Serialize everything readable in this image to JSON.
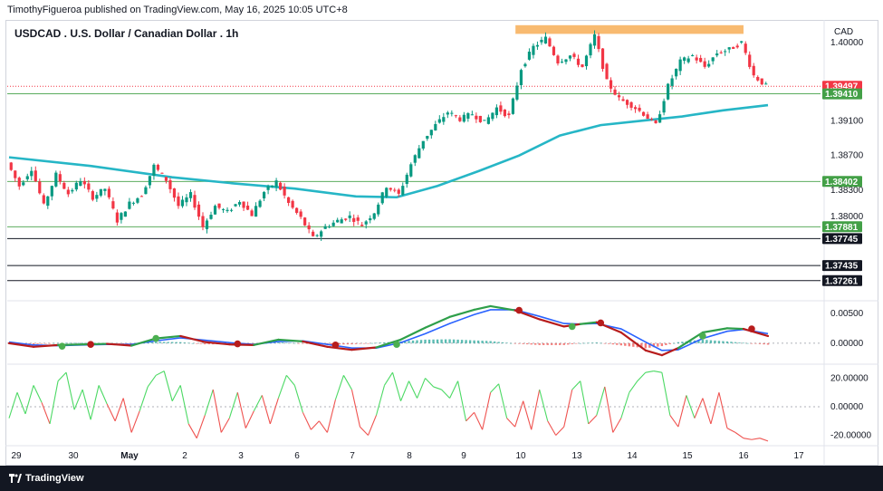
{
  "header": {
    "publisher": "TimothyFigueroa published on TradingView.com, May 16, 2025 10:05 UTC+8"
  },
  "footer": {
    "brand": "TradingView"
  },
  "colors": {
    "up": "#089981",
    "down": "#f23645",
    "ma": "#26b6c6",
    "resistance_zone": "#f7b360",
    "macd_up": "#2e9f4a",
    "macd_down": "#b71c1c",
    "macd_signal": "#2962ff",
    "osc_up": "#4cd964",
    "osc_down": "#ef5350"
  },
  "chart_data": {
    "type": "candlestick",
    "title": "USDCAD . U.S. Dollar / Canadian Dollar . 1h",
    "currency": "CAD",
    "x_tick_labels": [
      "29",
      "30",
      "May",
      "2",
      "3",
      "6",
      "7",
      "8",
      "9",
      "10",
      "13",
      "14",
      "15",
      "16",
      "17"
    ],
    "price_axis": {
      "ticks": [
        "1.40000",
        "1.39100",
        "1.38700",
        "1.38300",
        "1.38000"
      ],
      "ylim": [
        1.3705,
        1.4025
      ]
    },
    "price_path": [
      [
        0,
        1.3862
      ],
      [
        3,
        1.3835
      ],
      [
        6,
        1.3855
      ],
      [
        9,
        1.3812
      ],
      [
        12,
        1.3848
      ],
      [
        15,
        1.3826
      ],
      [
        18,
        1.3842
      ],
      [
        21,
        1.3822
      ],
      [
        24,
        1.3832
      ],
      [
        27,
        1.3795
      ],
      [
        30,
        1.3815
      ],
      [
        33,
        1.3825
      ],
      [
        36,
        1.3858
      ],
      [
        39,
        1.3842
      ],
      [
        42,
        1.3812
      ],
      [
        45,
        1.3825
      ],
      [
        48,
        1.3788
      ],
      [
        51,
        1.3812
      ],
      [
        54,
        1.3805
      ],
      [
        57,
        1.3818
      ],
      [
        60,
        1.3802
      ],
      [
        63,
        1.3828
      ],
      [
        66,
        1.384
      ],
      [
        69,
        1.3815
      ],
      [
        72,
        1.3798
      ],
      [
        75,
        1.3775
      ],
      [
        78,
        1.3788
      ],
      [
        81,
        1.3795
      ],
      [
        84,
        1.38
      ],
      [
        87,
        1.379
      ],
      [
        90,
        1.3805
      ],
      [
        93,
        1.3835
      ],
      [
        96,
        1.3825
      ],
      [
        99,
        1.386
      ],
      [
        102,
        1.3888
      ],
      [
        105,
        1.3905
      ],
      [
        108,
        1.392
      ],
      [
        111,
        1.3912
      ],
      [
        114,
        1.3918
      ],
      [
        117,
        1.3908
      ],
      [
        120,
        1.3925
      ],
      [
        123,
        1.3915
      ],
      [
        126,
        1.397
      ],
      [
        129,
        1.3995
      ],
      [
        132,
        1.4005
      ],
      [
        135,
        1.3978
      ],
      [
        138,
        1.3985
      ],
      [
        141,
        1.3972
      ],
      [
        144,
        1.4008
      ],
      [
        147,
        1.3955
      ],
      [
        150,
        1.3935
      ],
      [
        153,
        1.3928
      ],
      [
        156,
        1.3918
      ],
      [
        159,
        1.3905
      ],
      [
        162,
        1.395
      ],
      [
        165,
        1.3978
      ],
      [
        168,
        1.3985
      ],
      [
        171,
        1.3972
      ],
      [
        174,
        1.3988
      ],
      [
        177,
        1.3992
      ],
      [
        180,
        1.4
      ],
      [
        183,
        1.3962
      ],
      [
        186,
        1.395
      ]
    ],
    "moving_average": [
      [
        0,
        1.3868
      ],
      [
        20,
        1.3858
      ],
      [
        40,
        1.3845
      ],
      [
        55,
        1.3838
      ],
      [
        70,
        1.3832
      ],
      [
        85,
        1.3823
      ],
      [
        95,
        1.3822
      ],
      [
        105,
        1.3835
      ],
      [
        115,
        1.3852
      ],
      [
        125,
        1.387
      ],
      [
        135,
        1.3893
      ],
      [
        145,
        1.3905
      ],
      [
        155,
        1.391
      ],
      [
        165,
        1.3915
      ],
      [
        175,
        1.3922
      ],
      [
        186,
        1.3928
      ]
    ],
    "resistance_zone": {
      "from": 1.401,
      "to": 1.402,
      "start": 125,
      "end": 180
    },
    "levels": [
      {
        "label": "1.39497",
        "value": 1.39497,
        "style": "current",
        "color": "#f23645"
      },
      {
        "label": "1.39410",
        "value": 1.3941,
        "style": "support",
        "color": "#43a047"
      },
      {
        "label": "1.38402",
        "value": 1.38402,
        "style": "support",
        "color": "#43a047"
      },
      {
        "label": "1.37881",
        "value": 1.37881,
        "style": "support",
        "color": "#43a047"
      },
      {
        "label": "1.37745",
        "value": 1.37745,
        "style": "black",
        "color": "#131722"
      },
      {
        "label": "1.37435",
        "value": 1.37435,
        "style": "black",
        "color": "#131722"
      },
      {
        "label": "1.37261",
        "value": 1.37261,
        "style": "black",
        "color": "#131722"
      }
    ],
    "macd": {
      "ticks": [
        "0.00500",
        "0.00000"
      ],
      "ylim": [
        -0.0032,
        0.0068
      ],
      "line": [
        [
          0,
          0.0
        ],
        [
          6,
          -0.0006
        ],
        [
          12,
          -0.0003
        ],
        [
          18,
          -0.0002
        ],
        [
          24,
          -0.0001
        ],
        [
          30,
          -0.0004
        ],
        [
          36,
          0.0008
        ],
        [
          42,
          0.0012
        ],
        [
          48,
          0.0002
        ],
        [
          54,
          -0.0002
        ],
        [
          60,
          -0.0003
        ],
        [
          66,
          0.0006
        ],
        [
          72,
          0.0003
        ],
        [
          78,
          -0.0006
        ],
        [
          84,
          -0.0011
        ],
        [
          90,
          -0.0007
        ],
        [
          96,
          0.0006
        ],
        [
          102,
          0.0026
        ],
        [
          108,
          0.0044
        ],
        [
          114,
          0.0056
        ],
        [
          118,
          0.0062
        ],
        [
          124,
          0.0055
        ],
        [
          130,
          0.004
        ],
        [
          136,
          0.0028
        ],
        [
          140,
          0.0032
        ],
        [
          144,
          0.0035
        ],
        [
          150,
          0.0018
        ],
        [
          156,
          -0.0012
        ],
        [
          160,
          -0.002
        ],
        [
          164,
          -0.0008
        ],
        [
          170,
          0.0018
        ],
        [
          176,
          0.0025
        ],
        [
          180,
          0.0024
        ],
        [
          186,
          0.0012
        ]
      ],
      "signal": [
        [
          0,
          0.0002
        ],
        [
          6,
          -0.0003
        ],
        [
          12,
          -0.0004
        ],
        [
          18,
          -0.0003
        ],
        [
          24,
          -0.0002
        ],
        [
          30,
          -0.0002
        ],
        [
          36,
          0.0004
        ],
        [
          42,
          0.0009
        ],
        [
          48,
          0.0005
        ],
        [
          54,
          0.0001
        ],
        [
          60,
          -0.0002
        ],
        [
          66,
          0.0003
        ],
        [
          72,
          0.0004
        ],
        [
          78,
          -0.0002
        ],
        [
          84,
          -0.0008
        ],
        [
          90,
          -0.0008
        ],
        [
          96,
          0.0001
        ],
        [
          102,
          0.0016
        ],
        [
          108,
          0.0033
        ],
        [
          114,
          0.0048
        ],
        [
          118,
          0.0056
        ],
        [
          124,
          0.0056
        ],
        [
          130,
          0.0045
        ],
        [
          136,
          0.0033
        ],
        [
          140,
          0.0032
        ],
        [
          144,
          0.0033
        ],
        [
          150,
          0.0024
        ],
        [
          156,
          0.0002
        ],
        [
          160,
          -0.0012
        ],
        [
          164,
          -0.0011
        ],
        [
          170,
          0.0008
        ],
        [
          176,
          0.002
        ],
        [
          180,
          0.0023
        ],
        [
          186,
          0.0016
        ]
      ],
      "cross_up": [
        [
          13,
          -0.0005
        ],
        [
          36,
          0.0008
        ],
        [
          95,
          -0.0002
        ],
        [
          138,
          0.0028
        ],
        [
          170,
          0.0012
        ]
      ],
      "cross_down": [
        [
          20,
          -0.0002
        ],
        [
          56,
          -0.0001
        ],
        [
          80,
          -0.0003
        ],
        [
          125,
          0.0055
        ],
        [
          145,
          0.0034
        ],
        [
          182,
          0.0024
        ]
      ]
    },
    "oscillator": {
      "ticks": [
        "20.00000",
        "0.00000",
        "-20.00000"
      ],
      "ylim": [
        -26,
        26
      ],
      "values": [
        [
          0,
          -8
        ],
        [
          2,
          10
        ],
        [
          4,
          -5
        ],
        [
          6,
          15
        ],
        [
          8,
          3
        ],
        [
          10,
          -12
        ],
        [
          12,
          18
        ],
        [
          14,
          24
        ],
        [
          16,
          -2
        ],
        [
          18,
          12
        ],
        [
          20,
          -9
        ],
        [
          22,
          15
        ],
        [
          24,
          2
        ],
        [
          26,
          -10
        ],
        [
          28,
          6
        ],
        [
          30,
          -18
        ],
        [
          32,
          -3
        ],
        [
          34,
          14
        ],
        [
          36,
          22
        ],
        [
          38,
          25
        ],
        [
          40,
          4
        ],
        [
          42,
          15
        ],
        [
          44,
          -12
        ],
        [
          46,
          -22
        ],
        [
          48,
          -6
        ],
        [
          50,
          12
        ],
        [
          52,
          -18
        ],
        [
          54,
          -8
        ],
        [
          56,
          10
        ],
        [
          58,
          -15
        ],
        [
          60,
          -3
        ],
        [
          62,
          8
        ],
        [
          64,
          -12
        ],
        [
          66,
          6
        ],
        [
          68,
          22
        ],
        [
          70,
          15
        ],
        [
          72,
          -4
        ],
        [
          74,
          -16
        ],
        [
          76,
          -10
        ],
        [
          78,
          -18
        ],
        [
          80,
          5
        ],
        [
          82,
          22
        ],
        [
          84,
          12
        ],
        [
          86,
          -14
        ],
        [
          88,
          -20
        ],
        [
          90,
          -6
        ],
        [
          92,
          15
        ],
        [
          94,
          24
        ],
        [
          96,
          4
        ],
        [
          98,
          18
        ],
        [
          100,
          6
        ],
        [
          102,
          20
        ],
        [
          104,
          14
        ],
        [
          106,
          12
        ],
        [
          108,
          6
        ],
        [
          110,
          18
        ],
        [
          112,
          -10
        ],
        [
          114,
          -4
        ],
        [
          116,
          -16
        ],
        [
          118,
          10
        ],
        [
          120,
          16
        ],
        [
          122,
          -8
        ],
        [
          124,
          -14
        ],
        [
          126,
          4
        ],
        [
          128,
          -16
        ],
        [
          130,
          12
        ],
        [
          132,
          -10
        ],
        [
          134,
          -20
        ],
        [
          136,
          -14
        ],
        [
          138,
          12
        ],
        [
          140,
          18
        ],
        [
          142,
          -12
        ],
        [
          144,
          -6
        ],
        [
          146,
          14
        ],
        [
          148,
          -18
        ],
        [
          150,
          -8
        ],
        [
          152,
          10
        ],
        [
          154,
          18
        ],
        [
          156,
          24
        ],
        [
          158,
          25
        ],
        [
          160,
          24
        ],
        [
          162,
          -6
        ],
        [
          164,
          -14
        ],
        [
          166,
          8
        ],
        [
          168,
          -8
        ],
        [
          170,
          6
        ],
        [
          172,
          -12
        ],
        [
          174,
          10
        ],
        [
          176,
          -15
        ],
        [
          178,
          -18
        ],
        [
          180,
          -22
        ],
        [
          182,
          -23
        ],
        [
          184,
          -22
        ],
        [
          186,
          -24
        ]
      ]
    }
  }
}
